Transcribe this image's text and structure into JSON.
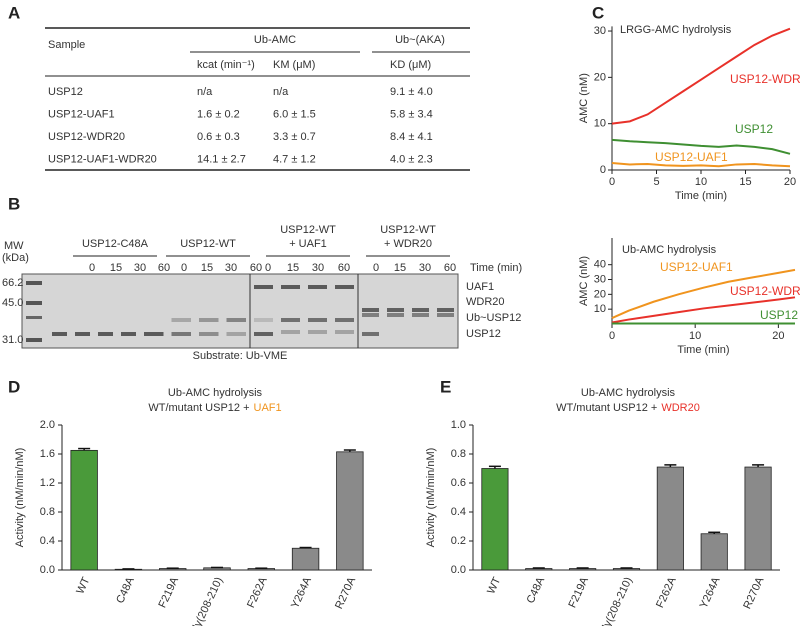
{
  "panel_labels": [
    "A",
    "B",
    "C",
    "D",
    "E"
  ],
  "table": {
    "header": {
      "sample": "Sample",
      "group1": "Ub-AMC",
      "group2": "Ub~(AKA)",
      "columns": [
        "kcat (min⁻¹)",
        "KM (μM)",
        "KD (μM)"
      ]
    },
    "rows": [
      [
        "USP12",
        "n/a",
        "n/a",
        "9.1 ± 4.0"
      ],
      [
        "USP12-UAF1",
        "1.6 ± 0.2",
        "6.0 ± 1.5",
        "5.8 ± 3.4"
      ],
      [
        "USP12-WDR20",
        "0.6 ± 0.3",
        "3.3 ± 0.7",
        "8.4 ± 4.1"
      ],
      [
        "USP12-UAF1-WDR20",
        "14.1 ± 2.7",
        "4.7 ± 1.2",
        "4.0 ± 2.3"
      ]
    ]
  },
  "gel": {
    "mw_label": "MW",
    "mw_unit": "(kDa)",
    "mw_markers": [
      "66.2",
      "45.0",
      "31.0"
    ],
    "time_label": "Time (min)",
    "groups": [
      {
        "lines": [
          "USP12-C48A"
        ],
        "times": [
          "0",
          "15",
          "30",
          "60"
        ]
      },
      {
        "lines": [
          "USP12-WT"
        ],
        "times": [
          "0",
          "15",
          "30",
          "60"
        ]
      },
      {
        "lines": [
          "USP12-WT",
          "+ UAF1"
        ],
        "times": [
          "0",
          "15",
          "30",
          "60"
        ]
      },
      {
        "lines": [
          "USP12-WT",
          "+ WDR20"
        ],
        "times": [
          "0",
          "15",
          "30",
          "60"
        ]
      }
    ],
    "band_labels": [
      "UAF1",
      "WDR20",
      "Ub~USP12",
      "USP12"
    ],
    "caption": "Substrate: Ub-VME"
  },
  "chart_data": [
    {
      "type": "line",
      "title": "LRGG-AMC hydrolysis",
      "xlabel": "Time (min)",
      "ylabel": "AMC (nM)",
      "xlim": [
        0,
        20
      ],
      "xticks": [
        0,
        5,
        10,
        15,
        20
      ],
      "ylim": [
        0,
        31
      ],
      "yticks": [
        0,
        10,
        20,
        30
      ],
      "x": [
        0,
        2,
        4,
        6,
        8,
        10,
        12,
        14,
        16,
        18,
        20
      ],
      "series": [
        {
          "name": "USP12-WDR20",
          "color": "#e8312a",
          "values": [
            10,
            10.5,
            12,
            14.5,
            17,
            19.5,
            22,
            24.5,
            27,
            29,
            30.5
          ]
        },
        {
          "name": "USP12",
          "color": "#3f8f32",
          "values": [
            6.5,
            6.2,
            6,
            5.8,
            5.5,
            5.2,
            5,
            5.3,
            5,
            4.5,
            3.5
          ]
        },
        {
          "name": "USP12-UAF1",
          "color": "#f0941e",
          "values": [
            1.5,
            1.2,
            1.3,
            1,
            0.9,
            1,
            0.8,
            1.2,
            1.3,
            1,
            0.8
          ]
        }
      ]
    },
    {
      "type": "line",
      "title": "Ub-AMC hydrolysis",
      "xlabel": "Time (min)",
      "ylabel": "AMC (nM)",
      "xlim": [
        0,
        22
      ],
      "xticks": [
        0,
        10,
        20
      ],
      "ylim": [
        0,
        58
      ],
      "yticks": [
        10,
        20,
        30,
        40
      ],
      "x": [
        0,
        2,
        5,
        8,
        11,
        14,
        17,
        20,
        22
      ],
      "series": [
        {
          "name": "USP12-UAF1",
          "color": "#f0941e",
          "values": [
            4,
            9,
            15,
            20,
            24.5,
            28.5,
            31.5,
            34.5,
            36.5
          ]
        },
        {
          "name": "USP12-WDR20",
          "color": "#e8312a",
          "values": [
            1,
            3,
            5.5,
            8,
            10.5,
            12.5,
            14.5,
            16.5,
            18
          ]
        },
        {
          "name": "USP12",
          "color": "#3f8f32",
          "values": [
            0.3,
            0.3,
            0.3,
            0.3,
            0.3,
            0.3,
            0.3,
            0.3,
            0.3
          ]
        }
      ]
    },
    {
      "type": "bar",
      "title": "Ub-AMC hydrolysis",
      "subtitle": "WT/mutant USP12 +",
      "subtitle_highlight": "UAF1",
      "highlight_color": "#f0941e",
      "ylabel": "Activity (nM/min/nM)",
      "categories": [
        "WT",
        "C48A",
        "F219A",
        "Gly(208-210)",
        "F262A",
        "Y264A",
        "R270A"
      ],
      "values": [
        1.65,
        0.01,
        0.02,
        0.03,
        0.02,
        0.3,
        1.63
      ],
      "errors": [
        0.025,
        0.005,
        0.005,
        0.005,
        0.005,
        0.01,
        0.025
      ],
      "colors": [
        "#4a9a3a",
        "#8a8a8a",
        "#8a8a8a",
        "#8a8a8a",
        "#8a8a8a",
        "#8a8a8a",
        "#8a8a8a"
      ],
      "ylim": [
        0,
        2
      ],
      "yticks": [
        {
          "value": 0,
          "label": "0.0"
        },
        0.4,
        0.8,
        1.2,
        1.6,
        {
          "value": 2,
          "label": "2.0"
        }
      ]
    },
    {
      "type": "bar",
      "title": "Ub-AMC hydrolysis",
      "subtitle": "WT/mutant USP12 +",
      "subtitle_highlight": "WDR20",
      "highlight_color": "#e8312a",
      "ylabel": "Activity (nM/min/nM)",
      "categories": [
        "WT",
        "C48A",
        "F219A",
        "Gly(208-210)",
        "F262A",
        "Y264A",
        "R270A"
      ],
      "values": [
        0.7,
        0.01,
        0.01,
        0.01,
        0.71,
        0.25,
        0.71
      ],
      "errors": [
        0.015,
        0.004,
        0.004,
        0.004,
        0.015,
        0.01,
        0.015
      ],
      "colors": [
        "#4a9a3a",
        "#8a8a8a",
        "#8a8a8a",
        "#8a8a8a",
        "#8a8a8a",
        "#8a8a8a",
        "#8a8a8a"
      ],
      "ylim": [
        0,
        1
      ],
      "yticks": [
        {
          "value": 0,
          "label": "0.0"
        },
        0.2,
        0.4,
        0.6,
        0.8,
        {
          "value": 1,
          "label": "1.0"
        }
      ]
    }
  ]
}
